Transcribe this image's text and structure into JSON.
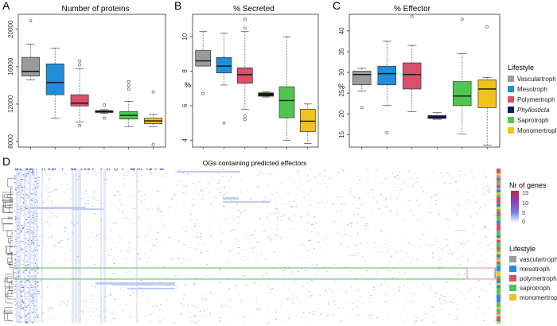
{
  "panels": {
    "A": {
      "letter": "A",
      "title": "Number of proteins",
      "ylabel": ""
    },
    "B": {
      "letter": "B",
      "title": "% Secreted",
      "ylabel": "%"
    },
    "C": {
      "letter": "C",
      "title": "% Effector",
      "ylabel": "%"
    },
    "D": {
      "letter": "D",
      "title": "OGs containing predicted effectors"
    }
  },
  "legend_top": {
    "title": "Lifestyle",
    "items": [
      {
        "label": "Vasculartroph",
        "color": "#9b9b9b",
        "italic": false
      },
      {
        "label": "Mesotroph",
        "color": "#1f8fd9",
        "italic": false
      },
      {
        "label": "Polymertroph",
        "color": "#d9506a",
        "italic": false
      },
      {
        "label": "Phyllosticta",
        "color": "#0b1a6e",
        "italic": true
      },
      {
        "label": "Saprotroph",
        "color": "#4fc74f",
        "italic": false
      },
      {
        "label": "Monomertroph",
        "color": "#f2c21b",
        "italic": false
      }
    ]
  },
  "legend_nr": {
    "title": "Nr of genes",
    "ticks": [
      "15",
      "10",
      "5",
      "0"
    ]
  },
  "legend_bottom": {
    "title": "Lifestyle",
    "items": [
      {
        "label": "vasculartroph",
        "color": "#9b9b9b"
      },
      {
        "label": "mesotroph",
        "color": "#1f8fd9"
      },
      {
        "label": "polymertroph",
        "color": "#d9506a"
      },
      {
        "label": "saprotroph",
        "color": "#4fc74f"
      },
      {
        "label": "monomertroph",
        "color": "#f2c21b"
      }
    ]
  },
  "chart_data": [
    {
      "type": "box",
      "title": "Number of proteins",
      "ylabel": "",
      "ylim": [
        7400,
        21600
      ],
      "yticks": [
        8000,
        12000,
        16000,
        20000
      ],
      "ytick_labels": [
        "8000",
        "12000",
        "16000",
        "20000"
      ],
      "categories": [
        "Vasculartroph",
        "Mesotroph",
        "Polymertroph",
        "Phyllosticta",
        "Saprotroph",
        "Monomertroph"
      ],
      "boxes": [
        {
          "min": 14600,
          "q1": 15000,
          "median": 15500,
          "q3": 17000,
          "max": 18400,
          "outliers": [
            20900
          ]
        },
        {
          "min": 10500,
          "q1": 13000,
          "median": 14300,
          "q3": 16300,
          "max": 18000,
          "outliers": []
        },
        {
          "min": 10100,
          "q1": 11800,
          "median": 12100,
          "q3": 13000,
          "max": 15800,
          "outliers": [
            9700,
            16200,
            16600
          ]
        },
        {
          "min": 11000,
          "q1": 11100,
          "median": 11200,
          "q3": 11300,
          "max": 11400,
          "outliers": [
            10500,
            11900
          ]
        },
        {
          "min": 9600,
          "q1": 10400,
          "median": 10800,
          "q3": 11200,
          "max": 12300,
          "outliers": [
            13600,
            14000,
            14400
          ]
        },
        {
          "min": 9600,
          "q1": 9900,
          "median": 10200,
          "q3": 10500,
          "max": 10900,
          "outliers": [
            7700,
            13300
          ]
        }
      ]
    },
    {
      "type": "box",
      "title": "% Secreted",
      "ylabel": "%",
      "ylim": [
        3.6,
        11.3
      ],
      "yticks": [
        4,
        6,
        8,
        10
      ],
      "ytick_labels": [
        "4",
        "6",
        "8",
        "10"
      ],
      "categories": [
        "Vasculartroph",
        "Mesotroph",
        "Polymertroph",
        "Phyllosticta",
        "Saprotroph",
        "Monomertroph"
      ],
      "boxes": [
        {
          "min": 8.3,
          "q1": 8.3,
          "median": 8.6,
          "q3": 9.2,
          "max": 10.3,
          "outliers": [
            6.7
          ]
        },
        {
          "min": 7.2,
          "q1": 7.9,
          "median": 8.3,
          "q3": 8.8,
          "max": 10.2,
          "outliers": [
            5.0
          ]
        },
        {
          "min": 5.8,
          "q1": 7.3,
          "median": 7.8,
          "q3": 8.2,
          "max": 10.3,
          "outliers": [
            5.2,
            5.4,
            10.5,
            11.0
          ]
        },
        {
          "min": 6.5,
          "q1": 6.55,
          "median": 6.65,
          "q3": 6.75,
          "max": 6.8,
          "outliers": []
        },
        {
          "min": 4.0,
          "q1": 5.3,
          "median": 6.3,
          "q3": 7.1,
          "max": 10.0,
          "outliers": []
        },
        {
          "min": 3.8,
          "q1": 4.5,
          "median": 5.1,
          "q3": 5.8,
          "max": 6.1,
          "outliers": []
        }
      ]
    },
    {
      "type": "box",
      "title": "% Effector",
      "ylabel": "%",
      "ylim": [
        12,
        44
      ],
      "yticks": [
        15,
        20,
        25,
        30,
        35,
        40
      ],
      "ytick_labels": [
        "15",
        "20",
        "25",
        "30",
        "35",
        "40"
      ],
      "categories": [
        "Vasculartroph",
        "Mesotroph",
        "Polymertroph",
        "Phyllosticta",
        "Saprotroph",
        "Monomertroph"
      ],
      "boxes": [
        {
          "min": 25.5,
          "q1": 27.0,
          "median": 29.5,
          "q3": 30.3,
          "max": 31.0,
          "outliers": [
            21.5
          ]
        },
        {
          "min": 22.0,
          "q1": 27.0,
          "median": 29.7,
          "q3": 31.5,
          "max": 37.5,
          "outliers": [
            15.5
          ]
        },
        {
          "min": 20.5,
          "q1": 26.0,
          "median": 29.5,
          "q3": 32.3,
          "max": 36.5,
          "outliers": [
            43.5
          ]
        },
        {
          "min": 18.7,
          "q1": 18.9,
          "median": 19.2,
          "q3": 19.6,
          "max": 20.3,
          "outliers": []
        },
        {
          "min": 15.2,
          "q1": 22.0,
          "median": 24.3,
          "q3": 27.8,
          "max": 34.5,
          "outliers": [
            42.8
          ]
        },
        {
          "min": 12.5,
          "q1": 21.5,
          "median": 26.0,
          "q3": 28.2,
          "max": 28.8,
          "outliers": [
            41.0
          ]
        }
      ]
    },
    {
      "type": "heatmap",
      "title": "OGs containing predicted effectors",
      "colorbar_label": "Nr of genes",
      "colorbar_range": [
        0,
        15
      ],
      "colorbar_ticks": [
        0,
        5,
        10,
        15
      ],
      "colorbar_colors": [
        "#ffffff",
        "#6b7de8",
        "#8e3fc1",
        "#b82a3a"
      ],
      "row_annotation_order": [
        "vasculartroph",
        "mesotroph",
        "polymertroph",
        "saprotroph",
        "monomertroph"
      ]
    }
  ]
}
